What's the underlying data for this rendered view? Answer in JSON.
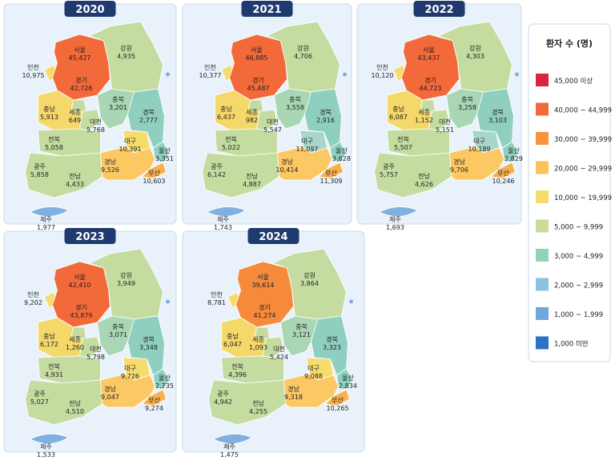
{
  "regions": [
    "서울",
    "인천",
    "경기",
    "강원",
    "충북",
    "충남",
    "세종",
    "대전",
    "전북",
    "경북",
    "대구",
    "울산",
    "광주",
    "전남",
    "경남",
    "부산",
    "제주"
  ],
  "panels": [
    {
      "year": "2020",
      "values": [
        "45,427",
        "10,975",
        "42,726",
        "4,935",
        "3,201",
        "5,913",
        "649",
        "5,768",
        "5,058",
        "2,777",
        "10,391",
        "3,351",
        "5,858",
        "4,433",
        "9,526",
        "10,603",
        "1,977"
      ],
      "colors": [
        "#f26a3a",
        "#f5dc6c",
        "#f26a3a",
        "#c5dca0",
        "#a9d6b4",
        "#f5d86a",
        "#c5dca0",
        "#c5dca0",
        "#c5dca0",
        "#8fcfc0",
        "#f5dc6c",
        "#8fcfc0",
        "#c5dca0",
        "#c5dca0",
        "#fbc863",
        "#f9b04a",
        "#7fb0e0"
      ]
    },
    {
      "year": "2021",
      "values": [
        "46,885",
        "10,377",
        "45,487",
        "4,706",
        "3,558",
        "6,437",
        "982",
        "5,547",
        "5,022",
        "2,916",
        "11,097",
        "3,628",
        "6,142",
        "4,887",
        "10,414",
        "11,309",
        "1,743"
      ],
      "colors": [
        "#f26a3a",
        "#f5dc6c",
        "#f26a3a",
        "#c5dca0",
        "#a9d6b4",
        "#f5d86a",
        "#c5dca0",
        "#c5dca0",
        "#c5dca0",
        "#8fcfc0",
        "#a9d6c8",
        "#8fcfc0",
        "#c5dca0",
        "#c5dca0",
        "#fbc863",
        "#f9b04a",
        "#7fb0e0"
      ]
    },
    {
      "year": "2022",
      "values": [
        "43,437",
        "10,120",
        "44,723",
        "4,303",
        "3,258",
        "6,087",
        "1,152",
        "5,151",
        "5,507",
        "3,103",
        "10,189",
        "2,829",
        "5,757",
        "4,626",
        "9,706",
        "10,246",
        "1,693"
      ],
      "colors": [
        "#f26a3a",
        "#f5dc6c",
        "#f26a3a",
        "#c5dca0",
        "#a9d6b4",
        "#f5d86a",
        "#c5dca0",
        "#c5dca0",
        "#c5dca0",
        "#8fcfc0",
        "#a9d6c8",
        "#8fcfc0",
        "#c5dca0",
        "#c5dca0",
        "#fbc863",
        "#f9b04a",
        "#7fb0e0"
      ]
    },
    {
      "year": "2023",
      "values": [
        "42,410",
        "9,202",
        "43,879",
        "3,949",
        "3,071",
        "6,172",
        "1,260",
        "5,798",
        "4,931",
        "3,348",
        "9,726",
        "2,735",
        "5,027",
        "4,510",
        "9,047",
        "9,274",
        "1,533"
      ],
      "colors": [
        "#f26a3a",
        "#f5dc6c",
        "#f26a3a",
        "#c5dca0",
        "#a9d6b4",
        "#f5d86a",
        "#c5dca0",
        "#c5dca0",
        "#c5dca0",
        "#8fcfc0",
        "#f5dc6c",
        "#8fcfc0",
        "#c5dca0",
        "#c5dca0",
        "#fbc863",
        "#f9b04a",
        "#7fb0e0"
      ]
    },
    {
      "year": "2024",
      "values": [
        "39,614",
        "8,781",
        "41,274",
        "3,864",
        "3,121",
        "6,047",
        "1,093",
        "5,424",
        "4,396",
        "3,323",
        "9,088",
        "2,834",
        "4,942",
        "4,255",
        "9,318",
        "10,265",
        "1,475"
      ],
      "colors": [
        "#f26a3a",
        "#f5dc6c",
        "#f58a3a",
        "#c5dca0",
        "#a9d6b4",
        "#f5d86a",
        "#c5dca0",
        "#c5dca0",
        "#c5dca0",
        "#8fcfc0",
        "#f5dc6c",
        "#8fcfc0",
        "#c5dca0",
        "#c5dca0",
        "#fbc863",
        "#f9b04a",
        "#7fb0e0"
      ]
    }
  ],
  "legend": {
    "title": "환자 수 (명)",
    "items": [
      {
        "label": "45,000 이상",
        "color": "#d7263d"
      },
      {
        "label": "40,000 ~ 44,999",
        "color": "#f26a3a"
      },
      {
        "label": "30,000 ~ 39,999",
        "color": "#f7943c"
      },
      {
        "label": "20,000 ~ 29,999",
        "color": "#fbc15a"
      },
      {
        "label": "10,000 ~ 19,999",
        "color": "#f5dc6c"
      },
      {
        "label": "5,000 ~ 9,999",
        "color": "#c9dc98"
      },
      {
        "label": "3,000 ~ 4,999",
        "color": "#94d1b8"
      },
      {
        "label": "2,000 ~ 2,999",
        "color": "#8cc1e0"
      },
      {
        "label": "1,000 ~ 1,999",
        "color": "#6fa8dc"
      },
      {
        "label": "1,000 미만",
        "color": "#2a72c4"
      }
    ]
  }
}
